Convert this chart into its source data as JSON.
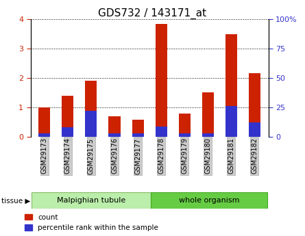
{
  "title": "GDS732 / 143171_at",
  "samples": [
    "GSM29173",
    "GSM29174",
    "GSM29175",
    "GSM29176",
    "GSM29177",
    "GSM29178",
    "GSM29179",
    "GSM29180",
    "GSM29181",
    "GSM29182"
  ],
  "count_values": [
    1.0,
    1.4,
    1.9,
    0.7,
    0.58,
    3.83,
    0.8,
    1.5,
    3.48,
    2.15
  ],
  "percentile_values_pct": [
    3,
    8,
    22,
    3,
    3,
    9,
    3,
    3,
    26,
    12
  ],
  "bar_color": "#cc2200",
  "percentile_color": "#3333cc",
  "ylim_left": [
    0,
    4
  ],
  "ylim_right": [
    0,
    100
  ],
  "yticks_left": [
    0,
    1,
    2,
    3,
    4
  ],
  "yticks_right": [
    0,
    25,
    50,
    75,
    100
  ],
  "yticklabels_right": [
    "0",
    "25",
    "50",
    "75",
    "100%"
  ],
  "tissue_groups": [
    {
      "label": "Malpighian tubule",
      "samples_count": 5,
      "color": "#bbeeaa",
      "edge_color": "#88bb66"
    },
    {
      "label": "whole organism",
      "samples_count": 5,
      "color": "#66cc44",
      "edge_color": "#44aa22"
    }
  ],
  "legend_count_label": "count",
  "legend_percentile_label": "percentile rank within the sample",
  "tick_label_color_left": "#cc2200",
  "tick_label_color_right": "#3333cc",
  "bar_width": 0.5,
  "background_color": "#ffffff"
}
